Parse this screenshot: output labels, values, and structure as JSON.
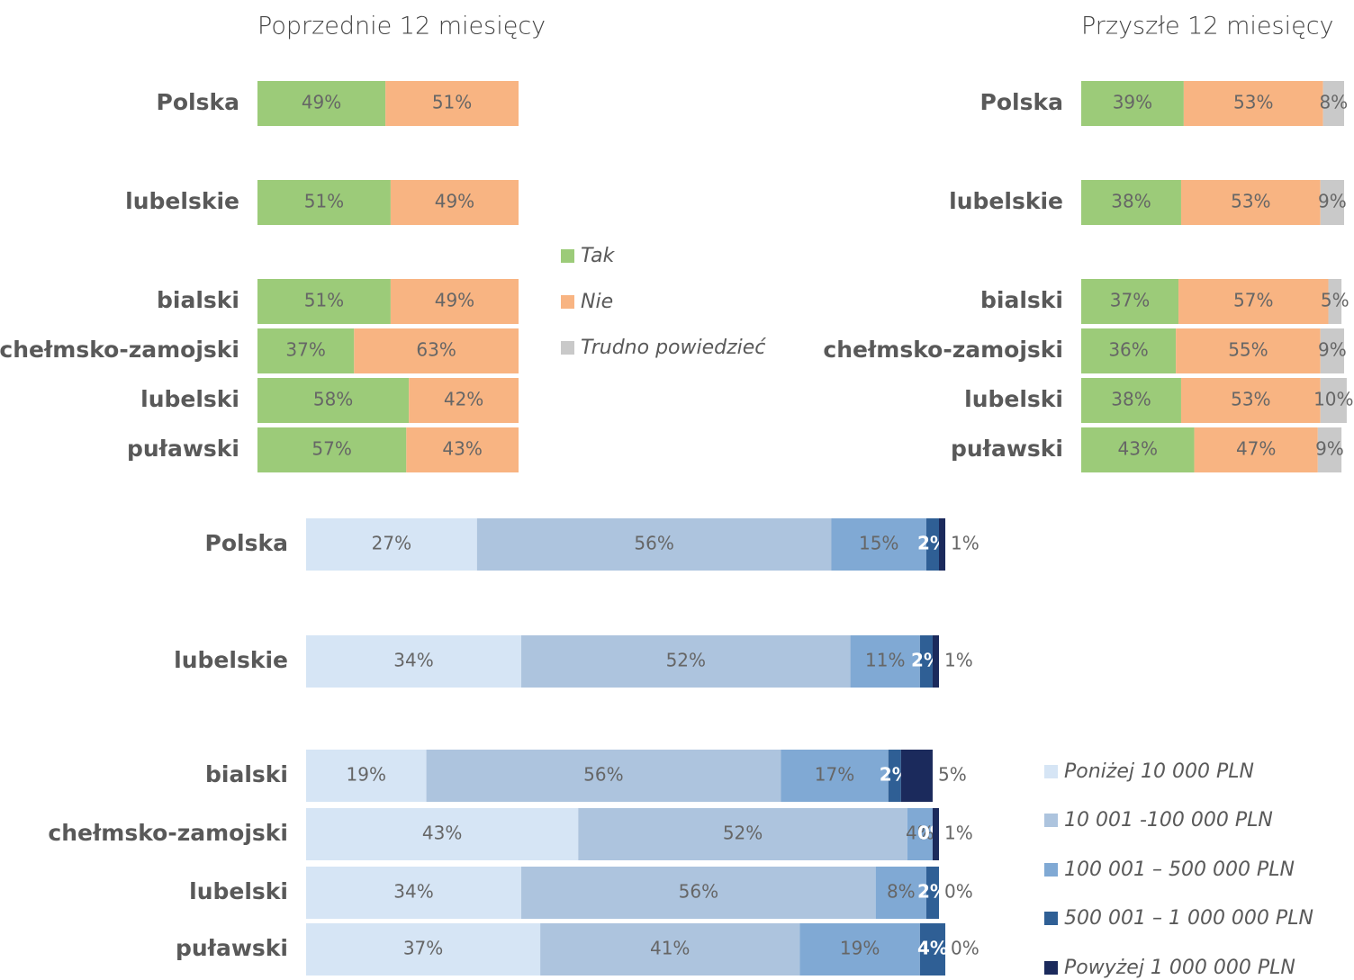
{
  "chart_data": [
    {
      "type": "bar",
      "orientation": "horizontal",
      "stacked": true,
      "title": "Poprzednie 12 miesięcy",
      "categories": [
        "Polska",
        "lubelskie",
        "bialski",
        "chełmsko-zamojski",
        "lubelski",
        "puławski"
      ],
      "series": [
        {
          "color": "#9ccb79",
          "values": [
            49,
            51,
            51,
            37,
            58,
            57
          ],
          "value_labels": [
            "49%",
            "51%",
            "51%",
            "37%",
            "58%",
            "57%"
          ]
        },
        {
          "color": "#f8b482",
          "values": [
            51,
            49,
            49,
            63,
            42,
            43
          ],
          "value_labels": [
            "51%",
            "49%",
            "49%",
            "63%",
            "42%",
            "43%"
          ]
        }
      ]
    },
    {
      "type": "bar",
      "orientation": "horizontal",
      "stacked": true,
      "title": "Przyszłe 12 miesięcy",
      "categories": [
        "Polska",
        "lubelskie",
        "bialski",
        "chełmsko-zamojski",
        "lubelski",
        "puławski"
      ],
      "series": [
        {
          "name": "Tak",
          "color": "#9ccb79",
          "values": [
            39,
            38,
            37,
            36,
            38,
            43
          ],
          "value_labels": [
            "39%",
            "38%",
            "37%",
            "36%",
            "38%",
            "43%"
          ]
        },
        {
          "name": "Nie",
          "color": "#f8b482",
          "values": [
            53,
            53,
            57,
            55,
            53,
            47
          ],
          "value_labels": [
            "53%",
            "53%",
            "57%",
            "55%",
            "53%",
            "47%"
          ]
        },
        {
          "name": "Trudno powiedzieć",
          "color": "#c9c9c9",
          "values": [
            8,
            9,
            5,
            9,
            10,
            9
          ],
          "value_labels": [
            "8%",
            "9%",
            "5%",
            "9%",
            "10%",
            "9%"
          ]
        }
      ]
    },
    {
      "type": "bar",
      "orientation": "horizontal",
      "stacked": true,
      "categories": [
        "Polska",
        "lubelskie",
        "bialski",
        "chełmsko-zamojski",
        "lubelski",
        "puławski"
      ],
      "series": [
        {
          "name": "Poniżej 10 000 PLN",
          "color": "#d6e5f5",
          "values": [
            27,
            34,
            19,
            43,
            34,
            37
          ],
          "value_labels": [
            "27%",
            "34%",
            "19%",
            "43%",
            "34%",
            "37%"
          ]
        },
        {
          "name": "10 001 -100 000 PLN",
          "color": "#adc4de",
          "values": [
            56,
            52,
            56,
            52,
            56,
            41
          ],
          "value_labels": [
            "56%",
            "52%",
            "56%",
            "52%",
            "56%",
            "41%"
          ]
        },
        {
          "name": "100 001 – 500 000 PLN",
          "color": "#80a9d4",
          "values": [
            15,
            11,
            17,
            4,
            8,
            19
          ],
          "value_labels": [
            "15%",
            "11%",
            "17%",
            "4%",
            "8%",
            "19%"
          ]
        },
        {
          "name": "500 001 – 1 000 000 PLN",
          "color": "#2f5f95",
          "values": [
            2,
            2,
            2,
            0,
            2,
            4
          ],
          "value_labels": [
            "2%",
            "2%",
            "2%",
            "0%",
            "2%",
            "4%"
          ]
        },
        {
          "name": "Powyżej 1 000 000 PLN",
          "color": "#1b2a5c",
          "values": [
            1,
            1,
            5,
            1,
            0,
            0
          ],
          "value_labels": [
            "1%",
            "1%",
            "5%",
            "1%",
            "0%",
            "0%"
          ]
        }
      ]
    }
  ]
}
